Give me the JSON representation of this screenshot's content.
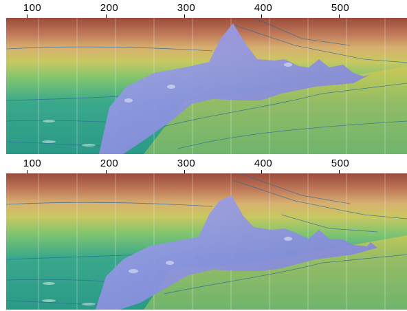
{
  "panels": [
    {
      "id": "top",
      "ticks": [
        {
          "value": 100,
          "label": "100"
        },
        {
          "value": 200,
          "label": "200"
        },
        {
          "value": 300,
          "label": "300"
        },
        {
          "value": 400,
          "label": "400"
        },
        {
          "value": 500,
          "label": "500"
        }
      ]
    },
    {
      "id": "bottom",
      "ticks": [
        {
          "value": 100,
          "label": "100"
        },
        {
          "value": 200,
          "label": "200"
        },
        {
          "value": 300,
          "label": "300"
        },
        {
          "value": 400,
          "label": "400"
        },
        {
          "value": 500,
          "label": "500"
        }
      ]
    }
  ],
  "colors": {
    "velocity_top": "#9a4a3a",
    "velocity_upper": "#d8a070",
    "velocity_mid": "#c8c060",
    "velocity_green": "#5cc070",
    "velocity_teal": "#2fa080",
    "salt_body": "#8c90e0",
    "horizon_line": "#2a6a9a"
  }
}
